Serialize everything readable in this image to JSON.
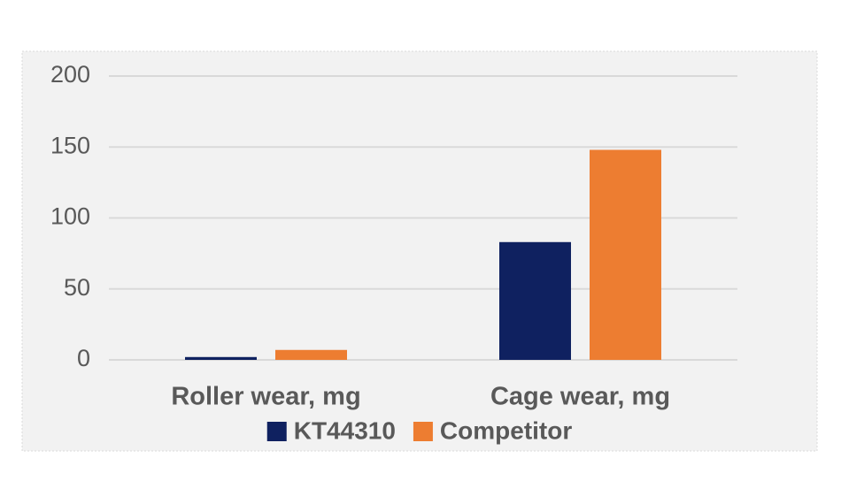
{
  "chart_data": {
    "type": "bar",
    "categories": [
      "Roller wear, mg",
      "Cage wear, mg"
    ],
    "series": [
      {
        "name": "KT44310",
        "color": "#0f2160",
        "values": [
          2,
          83
        ]
      },
      {
        "name": "Competitor",
        "color": "#ed7d31",
        "values": [
          7,
          148
        ]
      }
    ],
    "ylim": [
      0,
      200
    ],
    "yticks": [
      0,
      50,
      100,
      150,
      200
    ],
    "grid": true,
    "legend": "bottom"
  }
}
